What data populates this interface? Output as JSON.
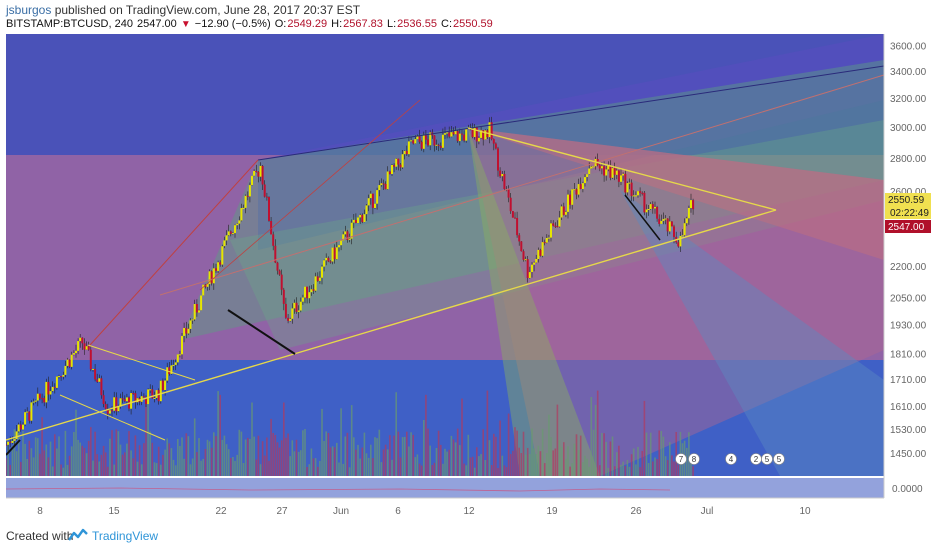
{
  "header": {
    "author": "jsburgos",
    "published_text": "published on TradingView.com, June 28, 2017 20:37 EST",
    "symbol": "BITSTAMP:BTCUSD, 240",
    "last_price": "2547.00",
    "change": "−12.90 (−0.5%)",
    "open_label": "O:",
    "open": "2549.29",
    "high_label": "H:",
    "high": "2567.83",
    "low_label": "L:",
    "low": "2536.55",
    "close_label": "C:",
    "close": "2550.59"
  },
  "price_axis": {
    "ticks": [
      "3600.00",
      "3400.00",
      "3200.00",
      "3000.00",
      "2800.00",
      "2600.00",
      "2400.00",
      "2200.00",
      "2050.00",
      "1930.00",
      "1810.00",
      "1710.00",
      "1610.00",
      "1530.00",
      "1450.00"
    ],
    "last_price_label": "2550.59",
    "countdown_label": "02:22:49",
    "bid_label": "2547.00",
    "oscillator_label": "0.0000"
  },
  "time_axis": {
    "ticks": [
      "8",
      "15",
      "22",
      "27",
      "Jun",
      "6",
      "12",
      "19",
      "26",
      "Jul",
      "10"
    ]
  },
  "event_markers": [
    "7",
    "8",
    "4",
    "2",
    "5",
    "5"
  ],
  "footer": {
    "created_with": "Created with",
    "brand": "TradingView"
  },
  "colors": {
    "bull": "#e6e600",
    "bear": "#c01030",
    "trendline": "#e6d84a",
    "axis_text": "#666666",
    "price_flag": "#1e6fd0",
    "bid_flag": "#b0102a"
  },
  "chart_data": {
    "type": "candlestick",
    "title": "BITSTAMP:BTCUSD, 240",
    "scale": "log",
    "ylim": [
      1380,
      3700
    ],
    "x_range": [
      "2017-05-05",
      "2017-07-13"
    ],
    "key_points": [
      {
        "date": "2017-05-05",
        "price": 1480
      },
      {
        "date": "2017-05-11",
        "price": 1860
      },
      {
        "date": "2017-05-13",
        "price": 1610
      },
      {
        "date": "2017-05-17",
        "price": 1660
      },
      {
        "date": "2017-05-25",
        "price": 2760
      },
      {
        "date": "2017-05-27",
        "price": 1950
      },
      {
        "date": "2017-06-06",
        "price": 2900
      },
      {
        "date": "2017-06-12",
        "price": 2980
      },
      {
        "date": "2017-06-15",
        "price": 2180
      },
      {
        "date": "2017-06-20",
        "price": 2780
      },
      {
        "date": "2017-06-22",
        "price": 2700
      },
      {
        "date": "2017-06-27",
        "price": 2330
      },
      {
        "date": "2017-06-28",
        "price": 2550
      }
    ],
    "trendlines": [
      {
        "name": "lower",
        "from": {
          "date": "2017-05-05",
          "price": 1530
        },
        "to": {
          "date": "2017-07-06",
          "price": 2520
        }
      },
      {
        "name": "upper",
        "from": {
          "date": "2017-06-12",
          "price": 2980
        },
        "to": {
          "date": "2017-07-06",
          "price": 2520
        }
      }
    ]
  }
}
